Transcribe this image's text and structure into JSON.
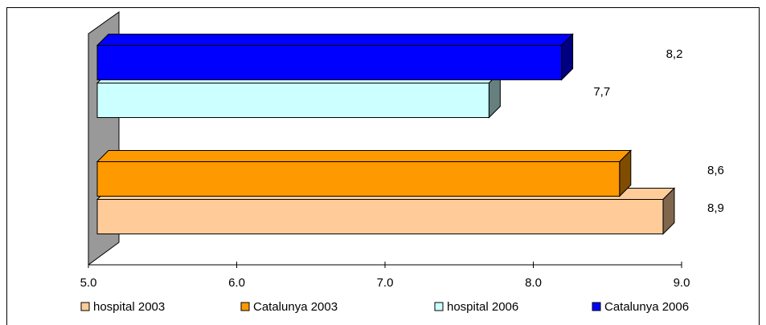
{
  "chart_data": {
    "type": "bar3d-horizontal",
    "categories": [
      null,
      null
    ],
    "series": [
      {
        "name": "hospital 2003",
        "color": "#FFCC99",
        "values": [
          8.9,
          null
        ],
        "value_labels": [
          "8,9",
          null
        ]
      },
      {
        "name": "Catalunya 2003",
        "color": "#FF9900",
        "values": [
          8.6,
          null
        ],
        "value_labels": [
          "8,6",
          null
        ]
      },
      {
        "name": "hospital 2006",
        "color": "#CCFFFF",
        "values": [
          null,
          7.7
        ],
        "value_labels": [
          null,
          "7,7"
        ]
      },
      {
        "name": "Catalunya 2006",
        "color": "#0000FF",
        "values": [
          null,
          8.2
        ],
        "value_labels": [
          null,
          "8,2"
        ]
      }
    ],
    "xlim": [
      5,
      9
    ],
    "xticks": [
      {
        "value": 5,
        "label": "5.0"
      },
      {
        "value": 6,
        "label": "6.0"
      },
      {
        "value": 7,
        "label": "7.0"
      },
      {
        "value": 8,
        "label": "8.0"
      },
      {
        "value": 9,
        "label": "9.0"
      }
    ],
    "legend": "bottom"
  }
}
